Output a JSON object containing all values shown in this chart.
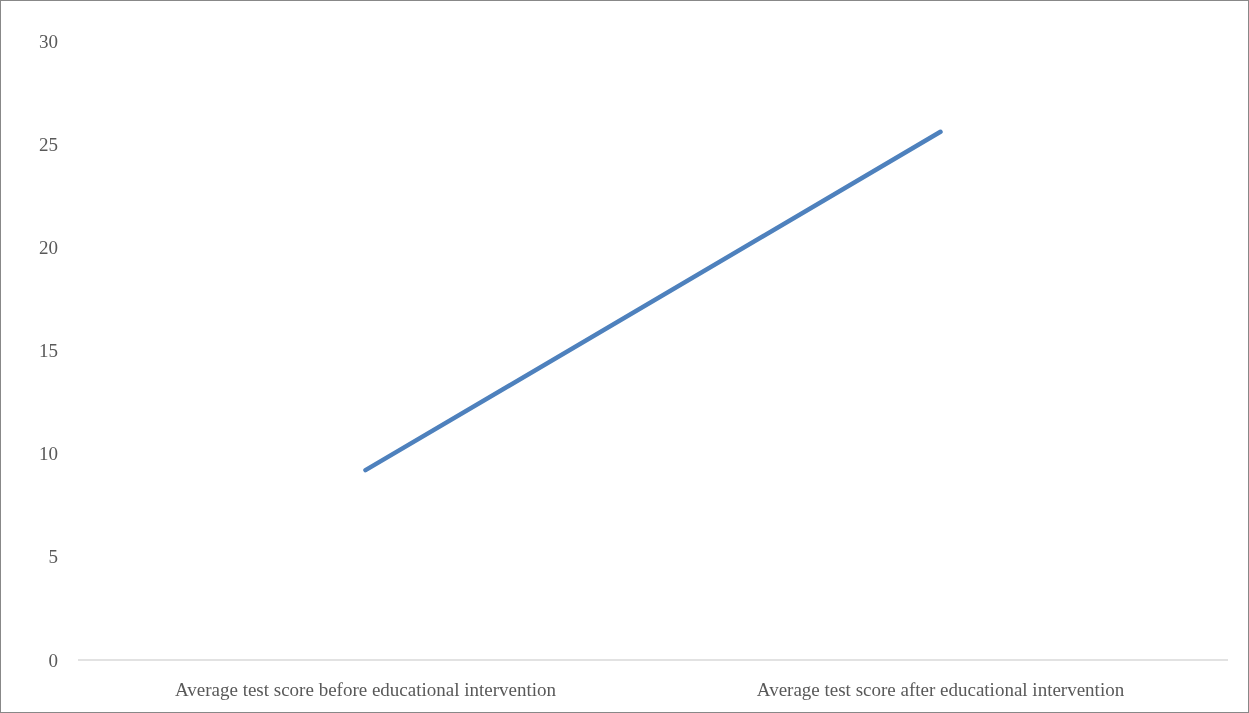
{
  "chart_data": {
    "type": "line",
    "categories": [
      "Average test score before educational intervention",
      "Average test score after educational intervention"
    ],
    "series": [
      {
        "color": "#4e81bd",
        "values": [
          9.2,
          25.6
        ]
      }
    ],
    "ylim": [
      0,
      30
    ],
    "yticks": [
      0,
      5,
      10,
      15,
      20,
      25,
      30
    ]
  }
}
